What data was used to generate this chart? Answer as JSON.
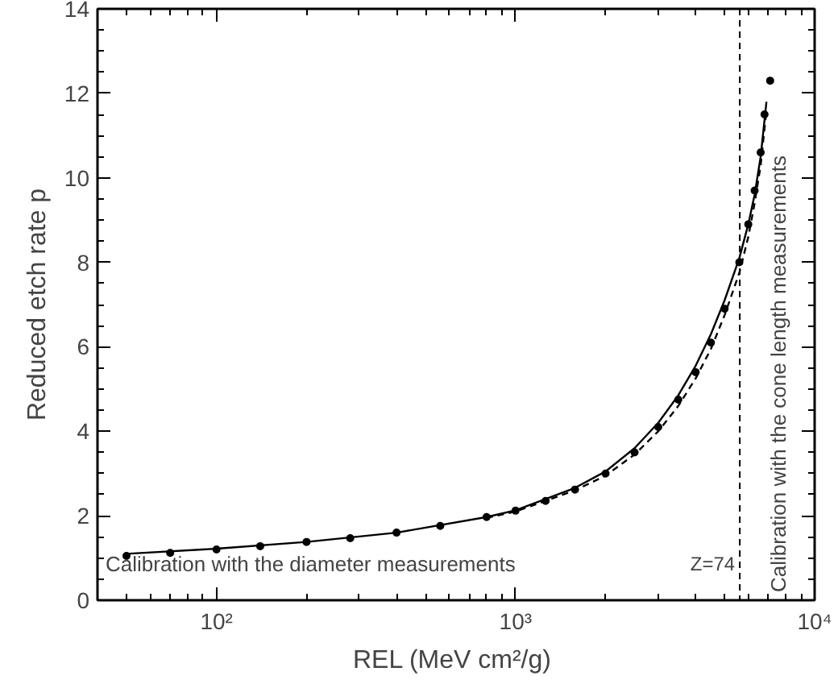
{
  "chart_data": {
    "type": "scatter",
    "xlabel": "REL  (MeV cm²/g)",
    "ylabel": "Reduced etch rate p",
    "log": "x",
    "xlim": [
      40,
      10000
    ],
    "ylim": [
      0,
      14
    ],
    "xticks": [
      {
        "value": 100,
        "label": "10²"
      },
      {
        "value": 1000,
        "label": "10³"
      },
      {
        "value": 10000,
        "label": "10⁴"
      }
    ],
    "yticks": [
      0,
      2,
      4,
      6,
      8,
      10,
      12,
      14
    ],
    "grid": false,
    "x": [
      50,
      70,
      100,
      140,
      200,
      280,
      400,
      560,
      800,
      1000,
      1260,
      1580,
      2000,
      2500,
      3000,
      3500,
      4000,
      4500,
      5000,
      5600,
      6000,
      6300,
      6600,
      6800,
      7100
    ],
    "series": [
      {
        "color": "#000000",
        "marker": "circle",
        "values": [
          1.05,
          1.12,
          1.2,
          1.28,
          1.38,
          1.47,
          1.6,
          1.76,
          1.97,
          2.12,
          2.35,
          2.62,
          3.0,
          3.5,
          4.1,
          4.75,
          5.4,
          6.1,
          6.9,
          8.0,
          8.9,
          9.7,
          10.6,
          11.5,
          12.3
        ]
      },
      {
        "type": "line",
        "color": "#000000",
        "line_style": "solid",
        "x": [
          50,
          100,
          200,
          400,
          800,
          1000,
          1580,
          2000,
          2500,
          3000,
          3500,
          4000,
          4500,
          5000,
          5600,
          6000,
          6300,
          6600,
          6900
        ],
        "values": [
          1.1,
          1.22,
          1.38,
          1.6,
          1.97,
          2.13,
          2.66,
          3.05,
          3.6,
          4.2,
          4.85,
          5.55,
          6.3,
          7.1,
          8.1,
          8.9,
          9.6,
          10.5,
          11.8
        ]
      },
      {
        "type": "line",
        "color": "#000000",
        "line_style": "dashed",
        "x": [
          800,
          1000,
          1580,
          2000,
          2500,
          3000,
          3500,
          4000,
          4500,
          5000,
          5600,
          6000,
          6300,
          6600,
          6900
        ],
        "values": [
          1.95,
          2.1,
          2.6,
          2.95,
          3.45,
          4.0,
          4.6,
          5.25,
          5.95,
          6.75,
          7.75,
          8.6,
          9.4,
          10.3,
          11.6
        ]
      }
    ],
    "ref_lines": [
      {
        "axis": "x",
        "value": 5620,
        "line_style": "dashed",
        "color": "#000000"
      }
    ],
    "annotations": [
      "Calibration with the diameter measurements",
      "Calibration with the cone length measurements",
      {
        "text": "Z=74",
        "x": 5620,
        "y": 0.6
      }
    ]
  }
}
